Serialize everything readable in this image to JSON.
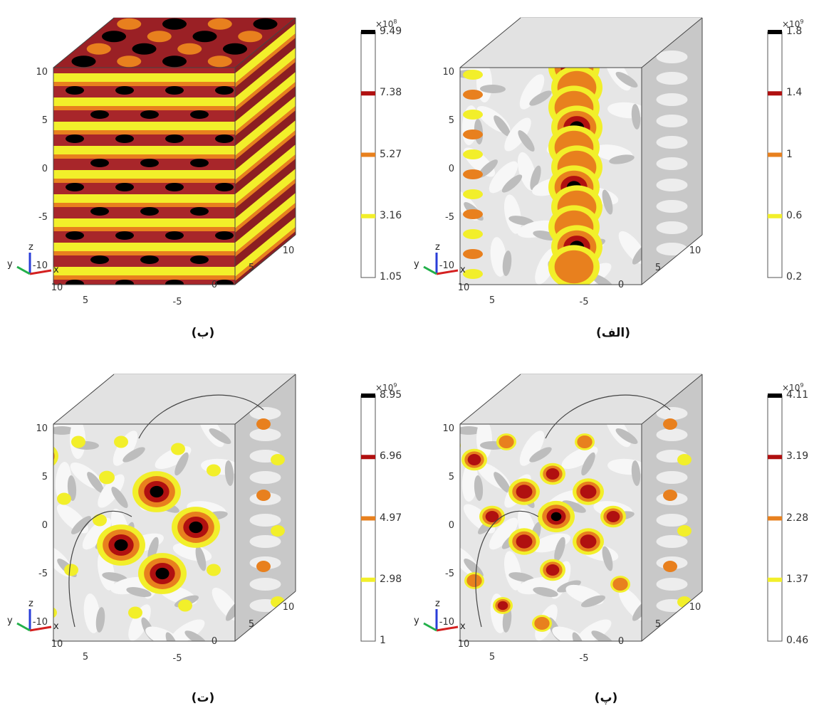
{
  "panels": [
    {
      "id": "b",
      "caption": "(ب)",
      "colorbar": {
        "exponent_base": "×10",
        "exponent_power": "8",
        "levels": [
          "9.49",
          "7.38",
          "5.27",
          "3.16",
          "1.05"
        ]
      },
      "style": "layered"
    },
    {
      "id": "alef",
      "caption": "(الف)",
      "colorbar": {
        "exponent_base": "×10",
        "exponent_power": "9",
        "levels": [
          "1.8",
          "1.4",
          "1",
          "0.6",
          "0.2"
        ]
      },
      "style": "columns"
    },
    {
      "id": "te",
      "caption": "(ت)",
      "colorbar": {
        "exponent_base": "×10",
        "exponent_power": "9",
        "levels": [
          "8.95",
          "6.96",
          "4.97",
          "2.98",
          "1"
        ]
      },
      "style": "blobs-large"
    },
    {
      "id": "pe",
      "caption": "(پ)",
      "colorbar": {
        "exponent_base": "×10",
        "exponent_power": "9",
        "levels": [
          "4.11",
          "3.19",
          "2.28",
          "1.37",
          "0.46"
        ]
      },
      "style": "blobs-small"
    }
  ],
  "axes": {
    "z_ticks": [
      "10",
      "5",
      "0",
      "-5",
      "-10"
    ],
    "x_ticks": [
      "10",
      "5",
      "0",
      "-5"
    ],
    "y_ticks": [
      "10",
      "5"
    ],
    "triad": {
      "x": "x",
      "y": "y",
      "z": "z"
    }
  },
  "colors": {
    "level_top": "#000000",
    "level_high": "#b01010",
    "level_mid": "#e8801e",
    "level_low": "#f2ef2a",
    "surface": "#d8d8d8",
    "axis_x": "#d42020",
    "axis_y": "#22b04a",
    "axis_z": "#2a3ed8"
  }
}
